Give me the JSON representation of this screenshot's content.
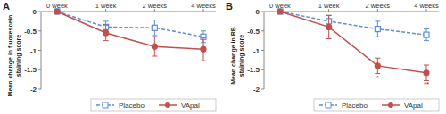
{
  "chart_data": [
    {
      "type": "line",
      "title": "A",
      "categories": [
        "0 week",
        "1 week",
        "2 weeks",
        "4 weeks"
      ],
      "y_label": "Mean change in fluorescein staining score",
      "ylim": [
        -2,
        0
      ],
      "yticks": [
        0,
        -0.5,
        -1,
        -1.5,
        -2
      ],
      "grid": false,
      "legend": "bottom",
      "series": [
        {
          "name": "Placebo",
          "color": "#5b8fd6",
          "marker": "square",
          "line_style": "dashed",
          "values": [
            0,
            -0.4,
            -0.42,
            -0.65
          ],
          "errors": [
            0,
            0.15,
            0.2,
            0.15
          ]
        },
        {
          "name": "VApal",
          "color": "#c0504d",
          "marker": "circle",
          "line_style": "solid",
          "values": [
            0,
            -0.55,
            -0.9,
            -0.97
          ],
          "errors": [
            0,
            0.2,
            0.25,
            0.3
          ]
        }
      ],
      "annotations": []
    },
    {
      "type": "line",
      "title": "B",
      "categories": [
        "0 week",
        "1 week",
        "2 weeks",
        "4 weeks"
      ],
      "y_label": "Mean change in RB staining score",
      "ylim": [
        -2,
        0
      ],
      "yticks": [
        0,
        -0.5,
        -1,
        -1.5,
        -2
      ],
      "grid": false,
      "legend": "bottom",
      "series": [
        {
          "name": "Placebo",
          "color": "#5b8fd6",
          "marker": "square",
          "line_style": "dashed",
          "values": [
            0,
            -0.25,
            -0.45,
            -0.6
          ],
          "errors": [
            0,
            0.15,
            0.2,
            0.15
          ]
        },
        {
          "name": "VApal",
          "color": "#c0504d",
          "marker": "circle",
          "line_style": "solid",
          "values": [
            0,
            -0.4,
            -1.4,
            -1.58
          ],
          "errors": [
            0,
            0.3,
            0.2,
            0.2
          ]
        }
      ],
      "annotations": [
        {
          "text": "*",
          "x": "2 weeks"
        },
        {
          "text": "**",
          "x": "4 weeks"
        }
      ]
    }
  ]
}
